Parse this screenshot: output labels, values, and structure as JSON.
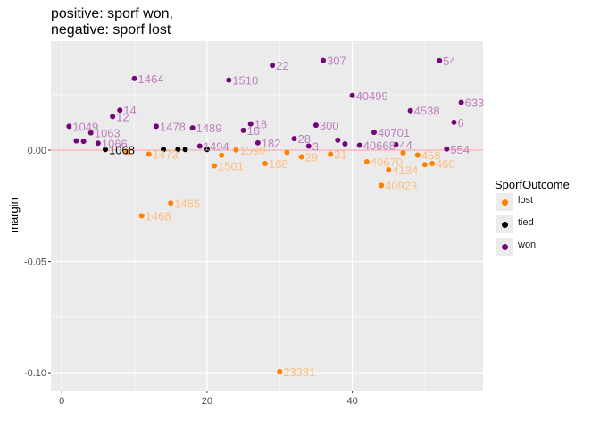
{
  "chart_data": {
    "type": "scatter",
    "title_lines": [
      "positive: sporf won,",
      "negative: sporf lost"
    ],
    "xlabel": "",
    "ylabel": "margin",
    "xlim": [
      -1.5,
      58
    ],
    "ylim": [
      -0.108,
      0.049
    ],
    "x_ticks": [
      0,
      20,
      40
    ],
    "y_ticks": [
      0.0,
      -0.05,
      -0.1
    ],
    "y_tick_labels": [
      "0.00",
      "-0.05",
      "-0.10"
    ],
    "reference_line": {
      "y": 0,
      "color": "#ff9999"
    },
    "grid": true,
    "legend": {
      "title": "SporfOutcome",
      "position": "right",
      "items": [
        {
          "key": "lost",
          "label": "lost",
          "color": "#ff7f00"
        },
        {
          "key": "tied",
          "label": "tied",
          "color": "#000000"
        },
        {
          "key": "won",
          "label": "won",
          "color": "#74067a"
        }
      ]
    },
    "label_colors": {
      "lost": "#ffbf80",
      "tied": "#000000",
      "won": "#c080c0"
    },
    "points": [
      {
        "x": 1,
        "y": 0.0107,
        "label": "1049",
        "group": "won"
      },
      {
        "x": 2,
        "y": 0.0042,
        "label": "",
        "group": "won"
      },
      {
        "x": 3,
        "y": 0.004,
        "label": "",
        "group": "won"
      },
      {
        "x": 4,
        "y": 0.0078,
        "label": "1063",
        "group": "won"
      },
      {
        "x": 5,
        "y": 0.0031,
        "label": "1066",
        "group": "won"
      },
      {
        "x": 6,
        "y": 0.0003,
        "label": "1068",
        "group": "tied"
      },
      {
        "x": 7,
        "y": 0.0151,
        "label": "12",
        "group": "won"
      },
      {
        "x": 8,
        "y": 0.018,
        "label": "14",
        "group": "won"
      },
      {
        "x": 9,
        "y": -0.0008,
        "label": "",
        "group": "lost"
      },
      {
        "x": 10,
        "y": 0.0322,
        "label": "1464",
        "group": "won"
      },
      {
        "x": 11,
        "y": -0.0295,
        "label": "1468",
        "group": "lost"
      },
      {
        "x": 12,
        "y": -0.0018,
        "label": "1473",
        "group": "lost"
      },
      {
        "x": 13,
        "y": 0.0107,
        "label": "1478",
        "group": "won"
      },
      {
        "x": 14,
        "y": 0.0003,
        "label": "",
        "group": "tied"
      },
      {
        "x": 15,
        "y": -0.0238,
        "label": "1485",
        "group": "lost"
      },
      {
        "x": 16,
        "y": 0.0003,
        "label": "",
        "group": "tied"
      },
      {
        "x": 17,
        "y": 0.0003,
        "label": "",
        "group": "tied"
      },
      {
        "x": 18,
        "y": 0.01,
        "label": "1489",
        "group": "won"
      },
      {
        "x": 19,
        "y": 0.0018,
        "label": "1494",
        "group": "won"
      },
      {
        "x": 20,
        "y": 0.0003,
        "label": "",
        "group": "tied"
      },
      {
        "x": 21,
        "y": -0.007,
        "label": "1501",
        "group": "lost"
      },
      {
        "x": 22,
        "y": -0.0023,
        "label": "",
        "group": "lost"
      },
      {
        "x": 23,
        "y": 0.0315,
        "label": "1510",
        "group": "won"
      },
      {
        "x": 24,
        "y": 0.0001,
        "label": "1590",
        "group": "lost"
      },
      {
        "x": 25,
        "y": 0.0089,
        "label": "16",
        "group": "won"
      },
      {
        "x": 26,
        "y": 0.0118,
        "label": "18",
        "group": "won"
      },
      {
        "x": 27,
        "y": 0.0033,
        "label": "182",
        "group": "won"
      },
      {
        "x": 28,
        "y": -0.006,
        "label": "188",
        "group": "lost"
      },
      {
        "x": 29,
        "y": 0.0381,
        "label": "22",
        "group": "won"
      },
      {
        "x": 30,
        "y": -0.0995,
        "label": "23381",
        "group": "lost"
      },
      {
        "x": 31,
        "y": -0.001,
        "label": "",
        "group": "lost"
      },
      {
        "x": 32,
        "y": 0.0052,
        "label": "28",
        "group": "won"
      },
      {
        "x": 33,
        "y": -0.003,
        "label": "29",
        "group": "lost"
      },
      {
        "x": 34,
        "y": 0.0018,
        "label": "3",
        "group": "won"
      },
      {
        "x": 35,
        "y": 0.0112,
        "label": "300",
        "group": "won"
      },
      {
        "x": 36,
        "y": 0.0403,
        "label": "307",
        "group": "won"
      },
      {
        "x": 37,
        "y": -0.0018,
        "label": "31",
        "group": "lost"
      },
      {
        "x": 38,
        "y": 0.0045,
        "label": "",
        "group": "won"
      },
      {
        "x": 39,
        "y": 0.0028,
        "label": "",
        "group": "won"
      },
      {
        "x": 40,
        "y": 0.0246,
        "label": "40499",
        "group": "won"
      },
      {
        "x": 41,
        "y": 0.0022,
        "label": "40668",
        "group": "won"
      },
      {
        "x": 42,
        "y": -0.0052,
        "label": "40670",
        "group": "lost"
      },
      {
        "x": 43,
        "y": 0.008,
        "label": "40701",
        "group": "won"
      },
      {
        "x": 44,
        "y": -0.0158,
        "label": "40923",
        "group": "lost"
      },
      {
        "x": 45,
        "y": -0.0088,
        "label": "4134",
        "group": "lost"
      },
      {
        "x": 46,
        "y": 0.0025,
        "label": "44",
        "group": "won"
      },
      {
        "x": 47,
        "y": -0.0012,
        "label": "",
        "group": "lost"
      },
      {
        "x": 48,
        "y": 0.0178,
        "label": "4538",
        "group": "won"
      },
      {
        "x": 49,
        "y": -0.0022,
        "label": "458",
        "group": "lost"
      },
      {
        "x": 50,
        "y": -0.0065,
        "label": "",
        "group": "lost"
      },
      {
        "x": 51,
        "y": -0.006,
        "label": "460",
        "group": "lost"
      },
      {
        "x": 52,
        "y": 0.0402,
        "label": "54",
        "group": "won"
      },
      {
        "x": 53,
        "y": 0.0005,
        "label": "554",
        "group": "won"
      },
      {
        "x": 54,
        "y": 0.0125,
        "label": "6",
        "group": "won"
      },
      {
        "x": 55,
        "y": 0.0215,
        "label": "633",
        "group": "won"
      }
    ]
  }
}
